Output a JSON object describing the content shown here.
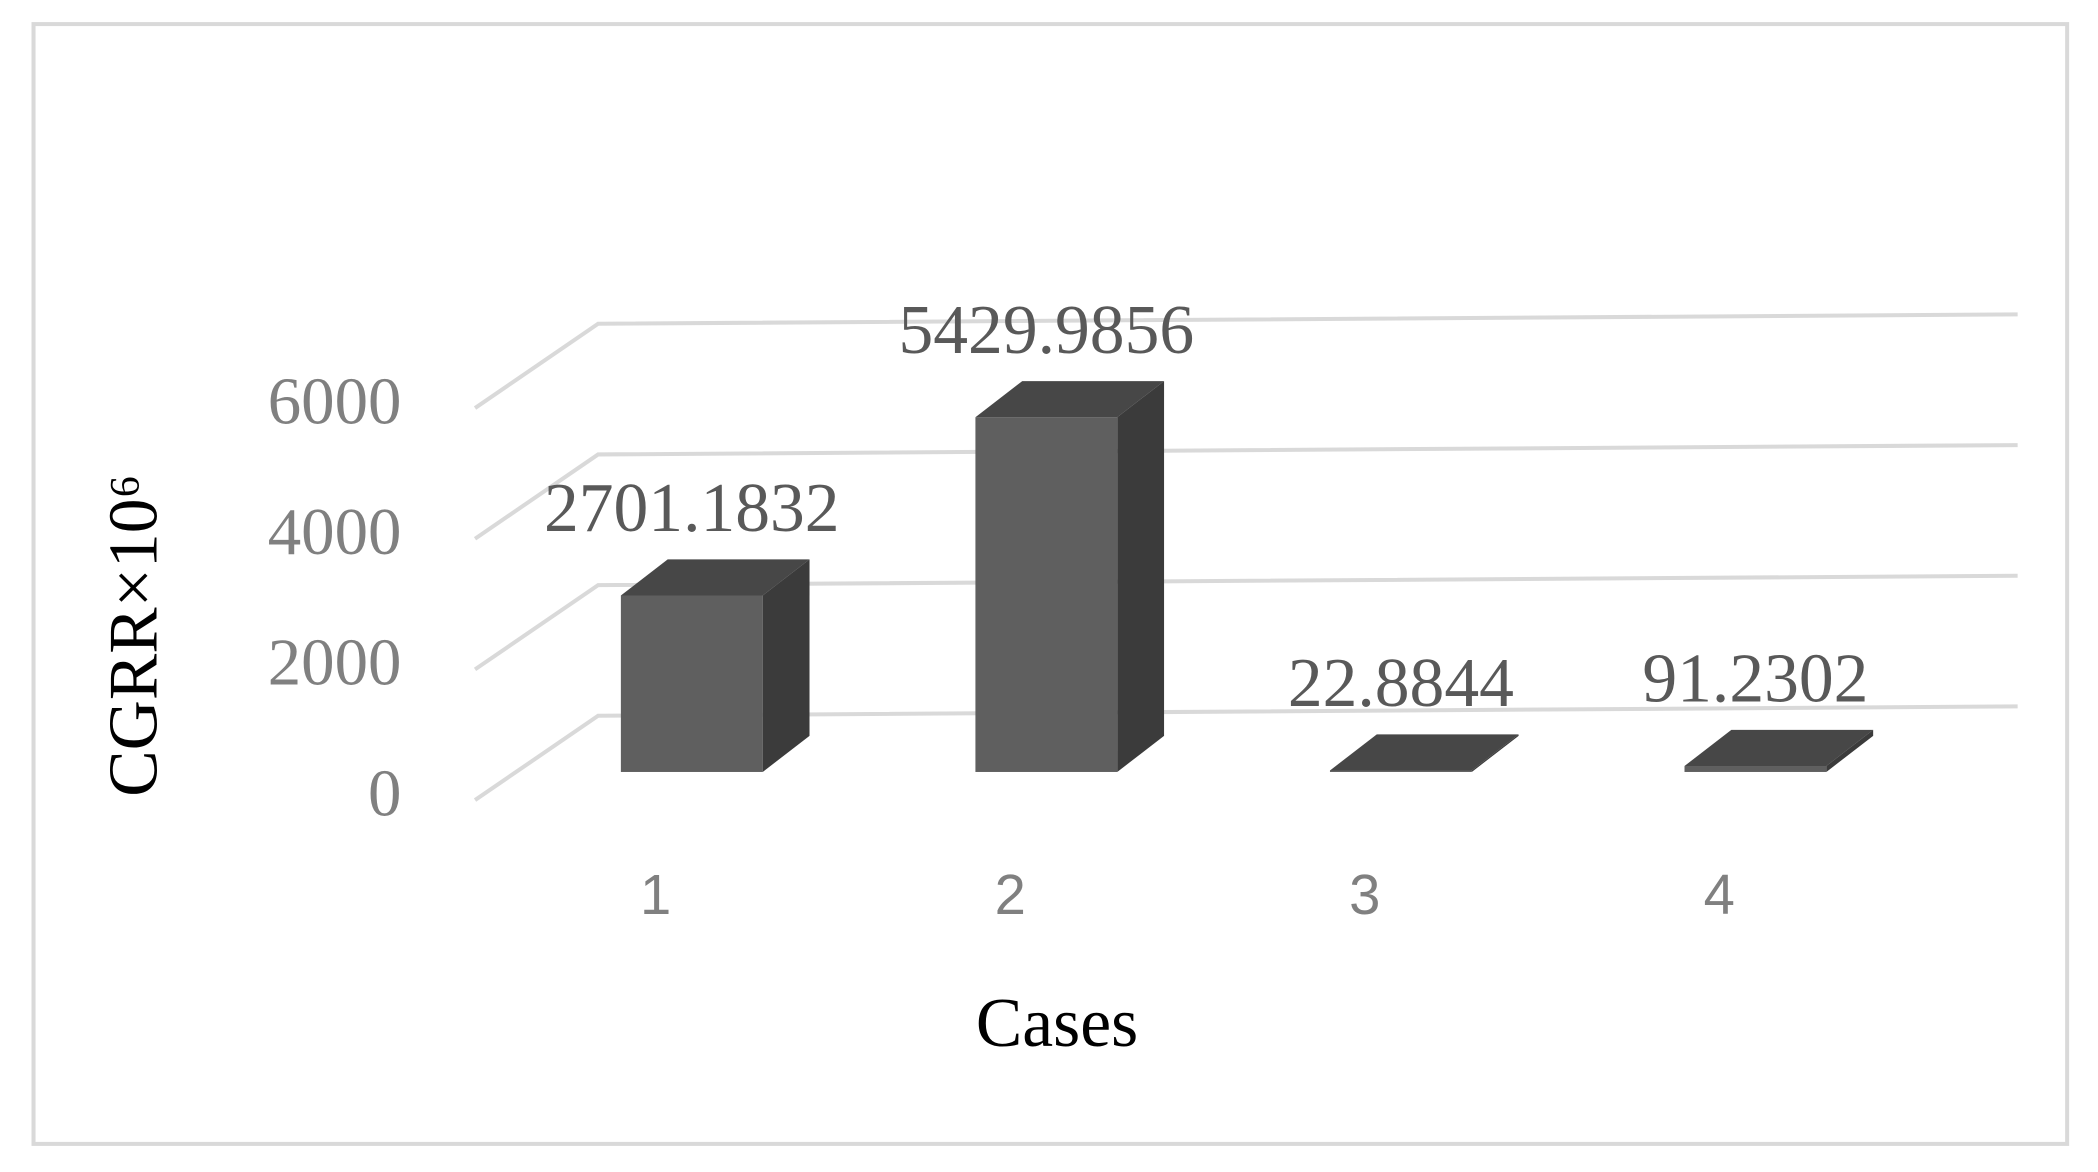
{
  "chart_data": {
    "type": "bar3d",
    "x_label": "Cases",
    "y_label": "CGRR×10⁶",
    "categories": [
      "1",
      "2",
      "3",
      "4"
    ],
    "values": [
      2701.1832,
      5429.9856,
      22.8844,
      91.2302
    ],
    "color": "#5f5f5f",
    "ylim": [
      0,
      6000
    ],
    "yticks": [
      0,
      2000,
      4000,
      6000
    ],
    "grid": true
  }
}
